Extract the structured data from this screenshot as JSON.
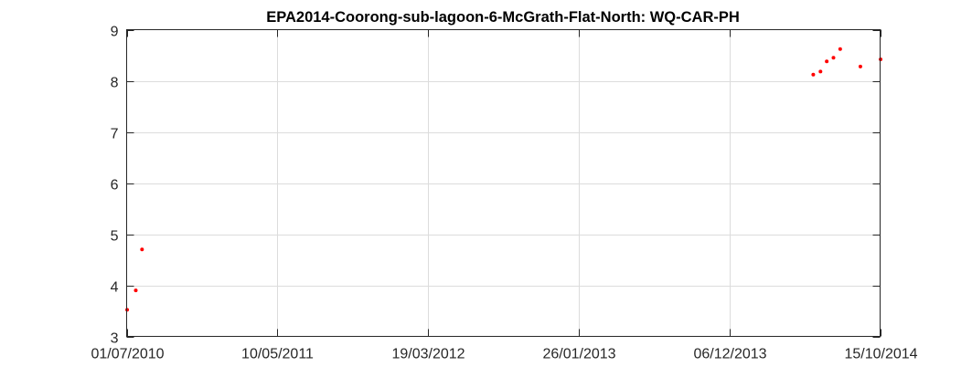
{
  "chart_data": {
    "type": "scatter",
    "title": "EPA2014-Coorong-sub-lagoon-6-McGrath-Flat-North: WQ-CAR-PH",
    "xlabel": "",
    "ylabel": "",
    "x_axis_type": "date",
    "xlim": [
      "2010-07-01",
      "2014-10-15"
    ],
    "ylim": [
      3,
      9
    ],
    "x_ticks": [
      "2010-07-01",
      "2011-05-10",
      "2012-03-19",
      "2013-01-26",
      "2013-12-06",
      "2014-10-15"
    ],
    "x_tick_labels": [
      "01/07/2010",
      "10/05/2011",
      "19/03/2012",
      "26/01/2013",
      "06/12/2013",
      "15/10/2014"
    ],
    "y_ticks": [
      3,
      4,
      5,
      6,
      7,
      8,
      9
    ],
    "y_tick_labels": [
      "3",
      "4",
      "5",
      "6",
      "7",
      "8",
      "9"
    ],
    "grid": true,
    "marker_color": "#ff0000",
    "series": [
      {
        "x": [
          "2010-07-02",
          "2010-07-20",
          "2010-08-02",
          "2014-05-29",
          "2014-06-13",
          "2014-06-26",
          "2014-07-10",
          "2014-07-24",
          "2014-09-04",
          "2014-10-16"
        ],
        "y": [
          3.52,
          3.9,
          4.7,
          8.12,
          8.18,
          8.38,
          8.45,
          8.62,
          8.28,
          8.42
        ]
      }
    ]
  }
}
